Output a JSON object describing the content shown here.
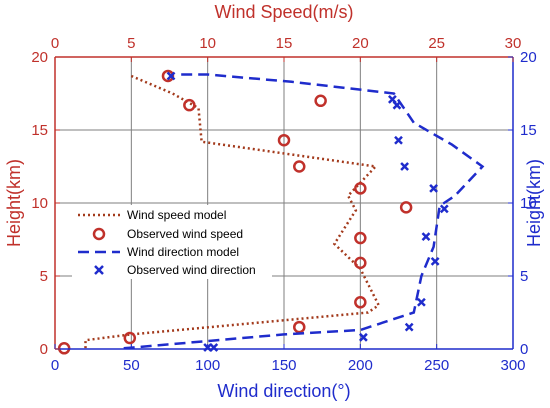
{
  "chart_data": {
    "type": "line",
    "title": "",
    "x_top": {
      "label": "Wind Speed(m/s)",
      "range": [
        0,
        30
      ],
      "ticks": [
        0,
        5,
        10,
        15,
        20,
        25,
        30
      ],
      "color": "#c0312b"
    },
    "x_bottom": {
      "label": "Wind direction(°)",
      "range": [
        0,
        300
      ],
      "ticks": [
        0,
        50,
        100,
        150,
        200,
        250,
        300
      ],
      "color": "#1f2ccc"
    },
    "y_left": {
      "label": "Height(km)",
      "range": [
        0,
        20
      ],
      "ticks": [
        0,
        5,
        10,
        15,
        20
      ],
      "color": "#c0312b"
    },
    "y_right": {
      "label": "Height(km)",
      "range": [
        0,
        20
      ],
      "ticks": [
        0,
        5,
        10,
        15,
        20
      ],
      "color": "#1f2ccc"
    },
    "grid": true,
    "legend_position": "center-left",
    "series": [
      {
        "name": "Wind speed model",
        "style": "dotted-line",
        "axis": "top",
        "color": "#a33a1c",
        "points": [
          [
            5,
            18.7
          ],
          [
            7.7,
            17.5
          ],
          [
            9.4,
            16.5
          ],
          [
            9.6,
            14.2
          ],
          [
            21,
            12.5
          ],
          [
            19.2,
            10.5
          ],
          [
            19.7,
            9.5
          ],
          [
            18.3,
            7.2
          ],
          [
            20,
            5.5
          ],
          [
            21.2,
            3.0
          ],
          [
            20.5,
            2.5
          ],
          [
            5,
            1.0
          ],
          [
            2,
            0.6
          ],
          [
            2,
            0.05
          ]
        ]
      },
      {
        "name": "Observed wind speed",
        "style": "circle-marker",
        "axis": "top",
        "color": "#c0312b",
        "points": [
          [
            0.6,
            0.05
          ],
          [
            4.9,
            0.75
          ],
          [
            16,
            1.5
          ],
          [
            20,
            3.2
          ],
          [
            20,
            5.9
          ],
          [
            20,
            7.6
          ],
          [
            23,
            9.7
          ],
          [
            20,
            11
          ],
          [
            16,
            12.5
          ],
          [
            15,
            14.3
          ],
          [
            17.4,
            17
          ],
          [
            8.8,
            16.7
          ],
          [
            7.4,
            18.7
          ]
        ]
      },
      {
        "name": "Wind direction model",
        "style": "dashed-line",
        "axis": "bottom",
        "color": "#1f2ccc",
        "points": [
          [
            45,
            0.05
          ],
          [
            150,
            1.0
          ],
          [
            200,
            1.3
          ],
          [
            235,
            2.5
          ],
          [
            240,
            5.0
          ],
          [
            248,
            7.0
          ],
          [
            252,
            9.8
          ],
          [
            262,
            10.5
          ],
          [
            280,
            12.5
          ],
          [
            260,
            14.0
          ],
          [
            235,
            15.5
          ],
          [
            222,
            17.5
          ],
          [
            155,
            18.3
          ],
          [
            100,
            18.8
          ],
          [
            80,
            18.8
          ]
        ]
      },
      {
        "name": "Observed wind direction",
        "style": "x-marker",
        "axis": "bottom",
        "color": "#1f2ccc",
        "points": [
          [
            100,
            0.1
          ],
          [
            104,
            0.1
          ],
          [
            202,
            0.8
          ],
          [
            232,
            1.5
          ],
          [
            240,
            3.2
          ],
          [
            249,
            6.0
          ],
          [
            243,
            7.7
          ],
          [
            255,
            9.6
          ],
          [
            248,
            11
          ],
          [
            229,
            12.5
          ],
          [
            225,
            14.3
          ],
          [
            224,
            16.7
          ],
          [
            221,
            17.1
          ],
          [
            76,
            18.7
          ]
        ]
      }
    ]
  }
}
